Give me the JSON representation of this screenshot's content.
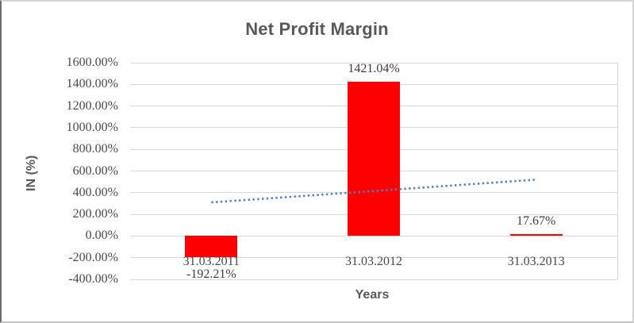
{
  "chart_data": {
    "type": "bar",
    "title": "Net Profit Margin",
    "xlabel": "Years",
    "ylabel": "IN (%)",
    "categories": [
      "31.03.2011",
      "31.03.2012",
      "31.03.2013"
    ],
    "values": [
      -192.21,
      1421.04,
      17.67
    ],
    "data_labels": [
      "-192.21%",
      "1421.04%",
      "17.67%"
    ],
    "ylim": [
      -400,
      1600
    ],
    "ytick_step": 200,
    "ytick_labels": [
      "1600.00%",
      "1400.00%",
      "1200.00%",
      "1000.00%",
      "800.00%",
      "600.00%",
      "400.00%",
      "200.00%",
      "0.00%",
      "-200.00%",
      "-400.00%"
    ],
    "grid": true,
    "legend": "none",
    "bar_color": "#FF0000",
    "trendline": {
      "type": "linear",
      "style": "dotted",
      "color": "#4F81BD",
      "values": [
        310.56,
        415.5,
        520.44
      ]
    }
  },
  "colors": {
    "title_text": "#595959",
    "axis_text": "#4A4A4A",
    "gridline": "#D9D9D9",
    "bar": "#FF0000",
    "trendline": "#4F81BD"
  }
}
